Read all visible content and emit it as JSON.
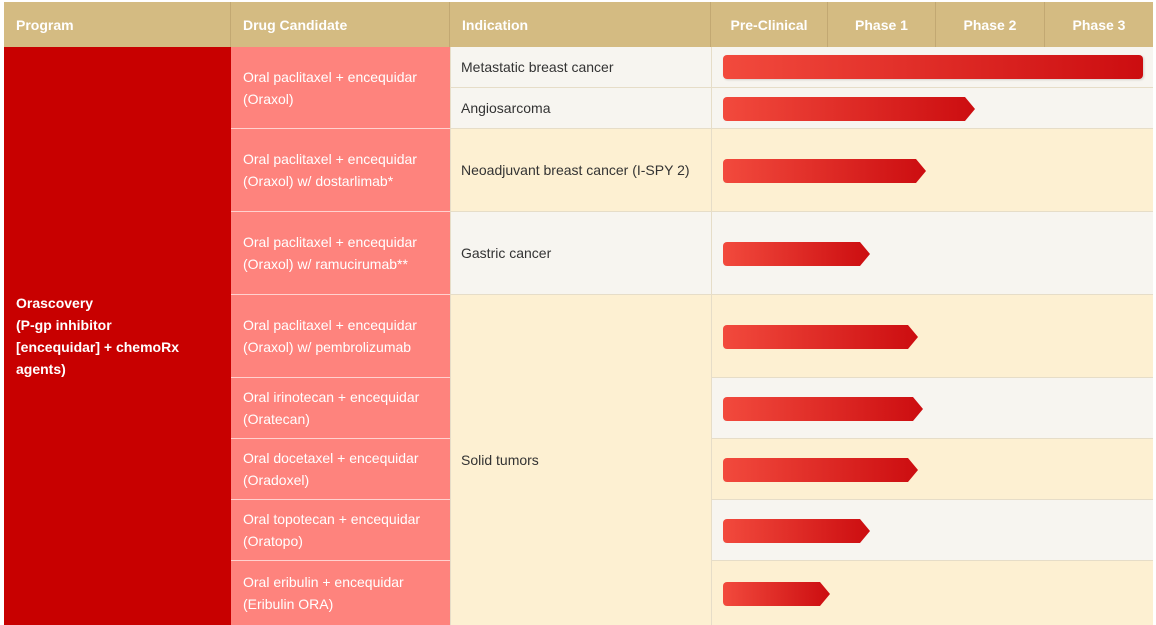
{
  "headers": {
    "program": "Program",
    "drug_candidate": "Drug Candidate",
    "indication": "Indication",
    "phases": [
      "Pre-Clinical",
      "Phase 1",
      "Phase 2",
      "Phase 3"
    ]
  },
  "program": {
    "name_line1": "Orascovery",
    "name_line2": "(P-gp inhibitor",
    "name_line3": "[encequidar] + chemoRx",
    "name_line4": "agents)"
  },
  "colors": {
    "header_bg": "#d4bb82",
    "program_bg": "#c80000",
    "drug_bg": "#fe837d",
    "bar_start": "#f24a3d",
    "bar_end": "#cc0d10"
  },
  "drugs": [
    "Oral paclitaxel + encequidar (Oraxol)",
    "Oral paclitaxel + encequidar (Oraxol) w/ dostarlimab*",
    "Oral paclitaxel + encequidar (Oraxol) w/ ramucirumab**",
    "Oral paclitaxel + encequidar (Oraxol) w/ pembrolizumab",
    "Oral irinotecan + encequidar (Oratecan)",
    "Oral docetaxel + encequidar (Oradoxel)",
    "Oral topotecan + encequidar (Oratopo)",
    "Oral eribulin + encequidar (Eribulin ORA)"
  ],
  "indications": [
    "Metastatic breast cancer",
    "Angiosarcoma",
    "Neoadjuvant breast cancer (I-SPY 2)",
    "Gastric cancer",
    "Solid tumors"
  ],
  "progress_rows": [
    {
      "indication": "Metastatic breast cancer",
      "progress_phases": 4.0
    },
    {
      "indication": "Angiosarcoma",
      "progress_phases": 2.4
    },
    {
      "indication": "Neoadjuvant breast cancer (I-SPY 2)",
      "progress_phases": 1.93
    },
    {
      "indication": "Gastric cancer",
      "progress_phases": 1.4
    },
    {
      "indication": "Solid tumors",
      "drug": "Oral paclitaxel + encequidar (Oraxol) w/ pembrolizumab",
      "progress_phases": 1.86
    },
    {
      "indication": "Solid tumors",
      "drug": "Oral irinotecan + encequidar (Oratecan)",
      "progress_phases": 1.9
    },
    {
      "indication": "Solid tumors",
      "drug": "Oral docetaxel + encequidar (Oradoxel)",
      "progress_phases": 1.86
    },
    {
      "indication": "Solid tumors",
      "drug": "Oral topotecan + encequidar (Oratopo)",
      "progress_phases": 1.4
    },
    {
      "indication": "Solid tumors",
      "drug": "Oral eribulin + encequidar (Eribulin ORA)",
      "progress_phases": 1.02
    }
  ]
}
